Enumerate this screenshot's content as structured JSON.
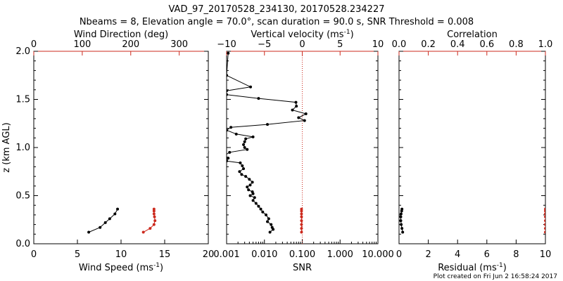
{
  "header": {
    "title": "VAD_97_20170528_234130, 20170528.234227",
    "subtitle": "Nbeams = 8, Elevation angle = 70.0°, scan duration = 90.0 s, SNR Threshold = 0.008"
  },
  "footer": {
    "note": "Plot created on Fri Jun  2 16:58:24 2017"
  },
  "colors": {
    "axis": "#000000",
    "secondary": "#cc2a1e"
  },
  "chart_data": [
    {
      "type": "line",
      "ylabel": "z (km AGL)",
      "ylim": [
        0,
        2.0
      ],
      "yticks": [
        0.0,
        0.5,
        1.0,
        1.5,
        2.0
      ],
      "ytick_labels": [
        "0.0",
        "0.5",
        "1.0",
        "1.5",
        "2.0"
      ],
      "xlabel": "Wind Speed (ms",
      "xlabel_sup": "-1",
      "xlabel_tail": ")",
      "xlim": [
        0,
        20
      ],
      "xticks": [
        0,
        5,
        10,
        15,
        20
      ],
      "xtick_labels": [
        "0",
        "5",
        "10",
        "15",
        "20"
      ],
      "x2label": "Wind Direction (deg)",
      "x2lim": [
        0,
        360
      ],
      "x2ticks": [
        0,
        100,
        200,
        300
      ],
      "x2tick_labels": [
        "0",
        "100",
        "200",
        "300"
      ],
      "series": [
        {
          "axis": "bottom",
          "color": "#000000",
          "marker": "dot",
          "x": [
            6.3,
            7.6,
            8.2,
            8.7,
            9.3,
            9.6
          ],
          "y": [
            0.12,
            0.17,
            0.22,
            0.26,
            0.31,
            0.36
          ]
        },
        {
          "axis": "top",
          "color": "#cc2a1e",
          "marker": "dot",
          "x": [
            226,
            240,
            248,
            250,
            249,
            248,
            248,
            248
          ],
          "y": [
            0.12,
            0.16,
            0.2,
            0.24,
            0.28,
            0.31,
            0.34,
            0.36
          ]
        }
      ]
    },
    {
      "type": "line",
      "ylim": [
        0,
        2.0
      ],
      "yticks": [
        0.0,
        0.5,
        1.0,
        1.5,
        2.0
      ],
      "xlabel": "SNR",
      "xscale": "log",
      "xlim": [
        0.001,
        10
      ],
      "xticks": [
        0.001,
        0.01,
        0.1,
        1,
        10
      ],
      "xtick_labels": [
        "0.001",
        "0.010",
        "0.100",
        "1.000",
        "10.000"
      ],
      "x2label": "Vertical velocity (ms",
      "x2label_sup": "-1",
      "x2label_tail": ")",
      "x2lim": [
        -10,
        10
      ],
      "x2ticks": [
        -10,
        -5,
        0,
        5,
        10
      ],
      "x2tick_labels": [
        "−10",
        "−5",
        "0",
        "5",
        "10"
      ],
      "reference_line": {
        "axis": "top",
        "x": 0,
        "style": "dotted",
        "color": "#cc2a1e"
      },
      "series": [
        {
          "axis": "bottom",
          "color": "#000000",
          "marker": "dot",
          "x": [
            0.014,
            0.017,
            0.016,
            0.015,
            0.012,
            0.013,
            0.011,
            0.009,
            0.008,
            0.007,
            0.006,
            0.005,
            0.0055,
            0.0042,
            0.005,
            0.0048,
            0.0038,
            0.0035,
            0.0042,
            0.0048,
            0.004,
            0.0032,
            0.0025,
            0.0022,
            0.0028,
            0.0026,
            0.0023,
            0.001,
            0.0011,
            0.0009,
            0.0012,
            0.0035,
            0.003,
            0.0028,
            0.003,
            0.0032,
            0.005,
            0.0018,
            0.001,
            0.0013,
            0.012,
            0.115,
            0.08,
            0.125,
            0.055,
            0.07,
            0.068,
            0.007,
            0.001,
            0.001,
            0.0043,
            0.001,
            0.0011
          ],
          "y": [
            0.12,
            0.15,
            0.17,
            0.2,
            0.23,
            0.26,
            0.3,
            0.33,
            0.36,
            0.39,
            0.42,
            0.45,
            0.48,
            0.5,
            0.52,
            0.54,
            0.56,
            0.59,
            0.61,
            0.64,
            0.67,
            0.7,
            0.72,
            0.75,
            0.78,
            0.81,
            0.84,
            0.86,
            0.89,
            0.92,
            0.95,
            0.98,
            1.0,
            1.03,
            1.06,
            1.09,
            1.11,
            1.14,
            1.18,
            1.21,
            1.24,
            1.28,
            1.31,
            1.35,
            1.39,
            1.43,
            1.47,
            1.51,
            1.55,
            1.59,
            1.63,
            1.75,
            1.98
          ]
        },
        {
          "axis": "top",
          "color": "#cc2a1e",
          "marker": "dot",
          "x": [
            -0.1,
            -0.1,
            -0.1,
            -0.1,
            -0.1,
            -0.1,
            -0.1,
            -0.1
          ],
          "y": [
            0.12,
            0.16,
            0.2,
            0.24,
            0.28,
            0.31,
            0.34,
            0.36
          ]
        }
      ]
    },
    {
      "type": "line",
      "ylim": [
        0,
        2.0
      ],
      "yticks": [
        0.0,
        0.5,
        1.0,
        1.5,
        2.0
      ],
      "xlabel": "Residual (ms",
      "xlabel_sup": "-1",
      "xlabel_tail": ")",
      "xlim": [
        0,
        10
      ],
      "xticks": [
        0,
        2,
        4,
        6,
        8,
        10
      ],
      "xtick_labels": [
        "0",
        "2",
        "4",
        "6",
        "8",
        "10"
      ],
      "x2label": "Correlation",
      "x2lim": [
        0,
        1.0
      ],
      "x2ticks": [
        0,
        0.2,
        0.4,
        0.6,
        0.8,
        1.0
      ],
      "x2tick_labels": [
        "0.0",
        "0.2",
        "0.4",
        "0.6",
        "0.8",
        "1.0"
      ],
      "series": [
        {
          "axis": "bottom",
          "color": "#000000",
          "marker": "dot",
          "x": [
            0.25,
            0.2,
            0.15,
            0.12,
            0.12,
            0.14,
            0.18,
            0.2
          ],
          "y": [
            0.12,
            0.16,
            0.2,
            0.24,
            0.28,
            0.31,
            0.34,
            0.36
          ]
        },
        {
          "axis": "top",
          "color": "#cc2a1e",
          "marker": "dot",
          "x": [
            1.0,
            1.0,
            1.0,
            1.0,
            1.0,
            1.0,
            1.0,
            1.0
          ],
          "y": [
            0.12,
            0.16,
            0.2,
            0.24,
            0.28,
            0.31,
            0.34,
            0.36
          ]
        }
      ]
    }
  ]
}
